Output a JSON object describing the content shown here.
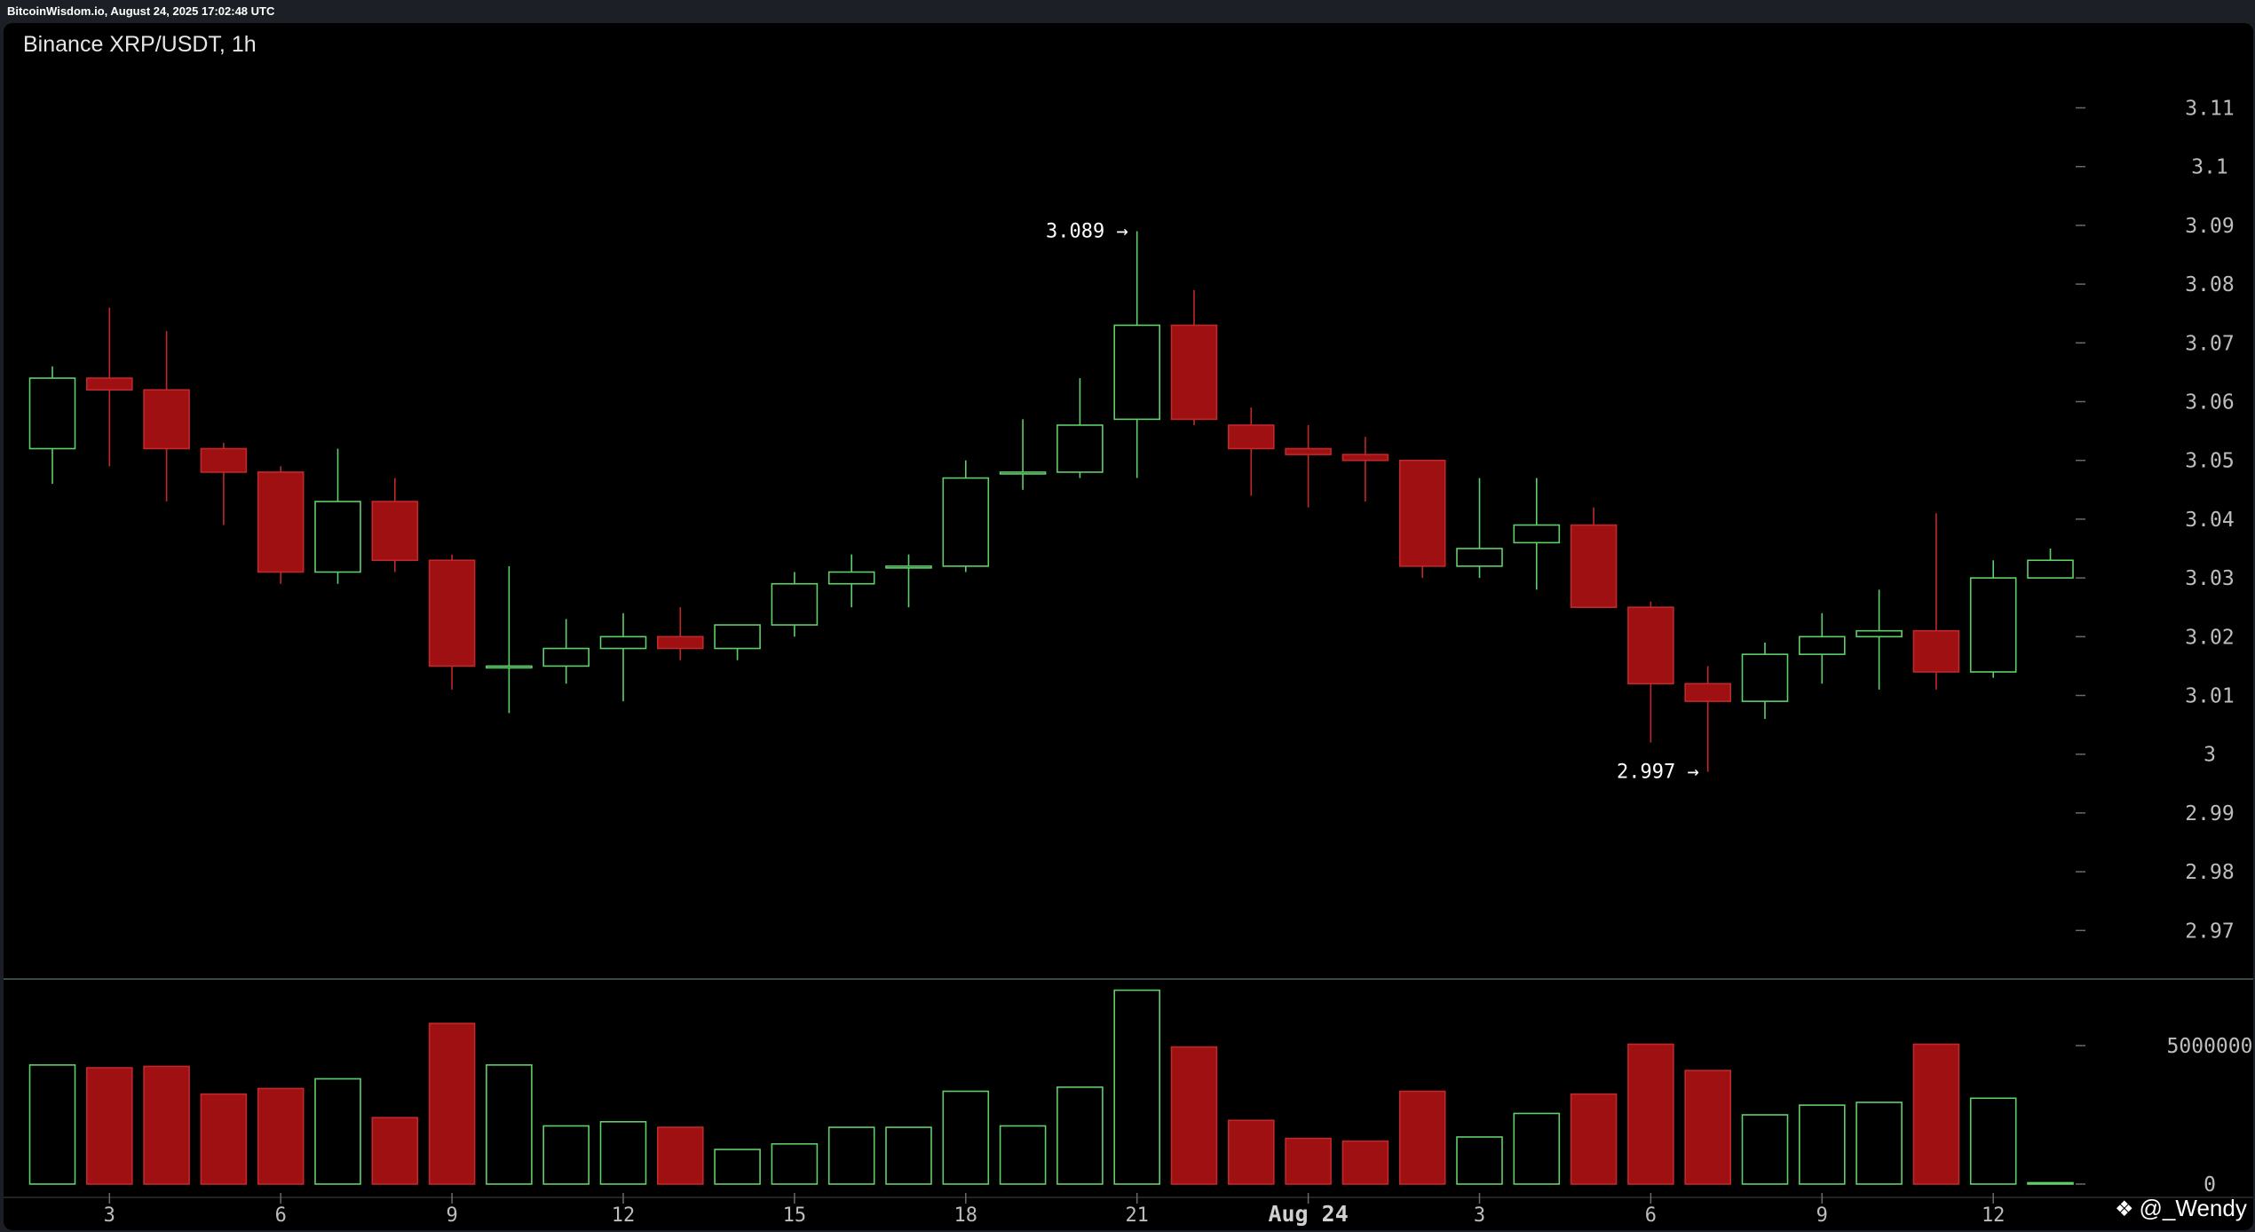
{
  "header": {
    "source_line": "BitcoinWisdom.io, August 24, 2025 17:02:48 UTC"
  },
  "chart": {
    "title": "Binance XRP/USDT, 1h"
  },
  "watermark": {
    "text": "@_Wendy",
    "icon": "binance-diamond-icon"
  },
  "colors": {
    "background": "#000000",
    "up": "#5fcf6a",
    "down_fill": "#9e1012",
    "down_border": "#c0282a",
    "axis_text": "#bdbdbd",
    "divider": "#3b4a44"
  },
  "chart_data": {
    "type": "candlestick",
    "title": "Binance XRP/USDT, 1h",
    "xlabel": "",
    "ylabel": "",
    "price_axis": {
      "ticks": [
        2.97,
        2.98,
        2.99,
        3,
        3.01,
        3.02,
        3.03,
        3.04,
        3.05,
        3.06,
        3.07,
        3.08,
        3.09,
        3.1,
        3.11
      ],
      "tick_labels": [
        "2.97",
        "2.98",
        "2.99",
        "3",
        "3.01",
        "3.02",
        "3.03",
        "3.04",
        "3.05",
        "3.06",
        "3.07",
        "3.08",
        "3.09",
        "3.1",
        "3.11"
      ],
      "range": [
        2.96,
        3.12
      ]
    },
    "volume_axis": {
      "ticks": [
        0,
        5000000
      ],
      "tick_labels": [
        "0",
        "5000000"
      ]
    },
    "x_ticks": [
      {
        "index": 1,
        "label": "3"
      },
      {
        "index": 4,
        "label": "6"
      },
      {
        "index": 7,
        "label": "9"
      },
      {
        "index": 10,
        "label": "12"
      },
      {
        "index": 13,
        "label": "15"
      },
      {
        "index": 16,
        "label": "18"
      },
      {
        "index": 19,
        "label": "21"
      },
      {
        "index": 22,
        "label": "Aug 24",
        "bold": true
      },
      {
        "index": 25,
        "label": "3"
      },
      {
        "index": 28,
        "label": "6"
      },
      {
        "index": 31,
        "label": "9"
      },
      {
        "index": 34,
        "label": "12"
      }
    ],
    "annotations": [
      {
        "text": "3.089 →",
        "index": 19,
        "value": 3.089,
        "type": "high"
      },
      {
        "text": "2.997 →",
        "index": 29,
        "value": 2.997,
        "type": "low"
      }
    ],
    "candles": [
      {
        "o": 3.052,
        "h": 3.066,
        "l": 3.046,
        "c": 3.064,
        "v": 4300000
      },
      {
        "o": 3.064,
        "h": 3.076,
        "l": 3.049,
        "c": 3.062,
        "v": 4200000
      },
      {
        "o": 3.062,
        "h": 3.072,
        "l": 3.043,
        "c": 3.052,
        "v": 4250000
      },
      {
        "o": 3.052,
        "h": 3.053,
        "l": 3.039,
        "c": 3.048,
        "v": 3250000
      },
      {
        "o": 3.048,
        "h": 3.049,
        "l": 3.029,
        "c": 3.031,
        "v": 3450000
      },
      {
        "o": 3.031,
        "h": 3.052,
        "l": 3.029,
        "c": 3.043,
        "v": 3800000
      },
      {
        "o": 3.043,
        "h": 3.047,
        "l": 3.031,
        "c": 3.033,
        "v": 2400000
      },
      {
        "o": 3.033,
        "h": 3.034,
        "l": 3.011,
        "c": 3.015,
        "v": 5800000
      },
      {
        "o": 3.015,
        "h": 3.032,
        "l": 3.007,
        "c": 3.015,
        "v": 4300000
      },
      {
        "o": 3.015,
        "h": 3.023,
        "l": 3.012,
        "c": 3.018,
        "v": 2100000
      },
      {
        "o": 3.018,
        "h": 3.024,
        "l": 3.009,
        "c": 3.02,
        "v": 2250000
      },
      {
        "o": 3.02,
        "h": 3.025,
        "l": 3.016,
        "c": 3.018,
        "v": 2050000
      },
      {
        "o": 3.018,
        "h": 3.022,
        "l": 3.016,
        "c": 3.022,
        "v": 1250000
      },
      {
        "o": 3.022,
        "h": 3.031,
        "l": 3.02,
        "c": 3.029,
        "v": 1450000
      },
      {
        "o": 3.029,
        "h": 3.034,
        "l": 3.025,
        "c": 3.031,
        "v": 2050000
      },
      {
        "o": 3.032,
        "h": 3.034,
        "l": 3.025,
        "c": 3.032,
        "v": 2050000
      },
      {
        "o": 3.032,
        "h": 3.05,
        "l": 3.031,
        "c": 3.047,
        "v": 3350000
      },
      {
        "o": 3.048,
        "h": 3.057,
        "l": 3.045,
        "c": 3.048,
        "v": 2100000
      },
      {
        "o": 3.048,
        "h": 3.064,
        "l": 3.047,
        "c": 3.056,
        "v": 3500000
      },
      {
        "o": 3.057,
        "h": 3.089,
        "l": 3.047,
        "c": 3.073,
        "v": 7000000
      },
      {
        "o": 3.073,
        "h": 3.079,
        "l": 3.056,
        "c": 3.057,
        "v": 4950000
      },
      {
        "o": 3.056,
        "h": 3.059,
        "l": 3.044,
        "c": 3.052,
        "v": 2300000
      },
      {
        "o": 3.052,
        "h": 3.056,
        "l": 3.042,
        "c": 3.051,
        "v": 1650000
      },
      {
        "o": 3.051,
        "h": 3.054,
        "l": 3.043,
        "c": 3.05,
        "v": 1550000
      },
      {
        "o": 3.05,
        "h": 3.05,
        "l": 3.03,
        "c": 3.032,
        "v": 3350000
      },
      {
        "o": 3.032,
        "h": 3.047,
        "l": 3.03,
        "c": 3.035,
        "v": 1700000
      },
      {
        "o": 3.036,
        "h": 3.047,
        "l": 3.028,
        "c": 3.039,
        "v": 2550000
      },
      {
        "o": 3.039,
        "h": 3.042,
        "l": 3.025,
        "c": 3.025,
        "v": 3250000
      },
      {
        "o": 3.025,
        "h": 3.026,
        "l": 3.002,
        "c": 3.012,
        "v": 5050000
      },
      {
        "o": 3.012,
        "h": 3.015,
        "l": 2.997,
        "c": 3.009,
        "v": 4100000
      },
      {
        "o": 3.009,
        "h": 3.019,
        "l": 3.006,
        "c": 3.017,
        "v": 2500000
      },
      {
        "o": 3.017,
        "h": 3.024,
        "l": 3.012,
        "c": 3.02,
        "v": 2850000
      },
      {
        "o": 3.02,
        "h": 3.028,
        "l": 3.011,
        "c": 3.021,
        "v": 2950000
      },
      {
        "o": 3.021,
        "h": 3.041,
        "l": 3.011,
        "c": 3.014,
        "v": 5050000
      },
      {
        "o": 3.014,
        "h": 3.033,
        "l": 3.013,
        "c": 3.03,
        "v": 3100000
      },
      {
        "o": 3.03,
        "h": 3.035,
        "l": 3.03,
        "c": 3.033,
        "v": 50000
      }
    ]
  }
}
